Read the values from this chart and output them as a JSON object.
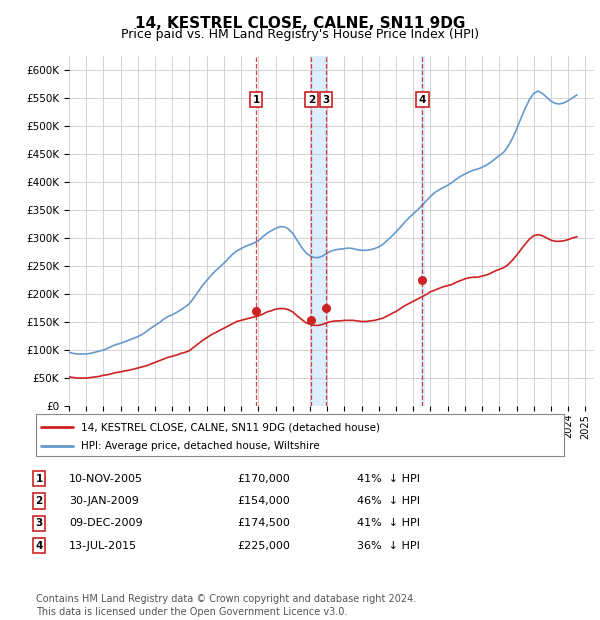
{
  "title": "14, KESTREL CLOSE, CALNE, SN11 9DG",
  "subtitle": "Price paid vs. HM Land Registry's House Price Index (HPI)",
  "title_fontsize": 11,
  "subtitle_fontsize": 9,
  "ylim": [
    0,
    625000
  ],
  "yticks": [
    0,
    50000,
    100000,
    150000,
    200000,
    250000,
    300000,
    350000,
    400000,
    450000,
    500000,
    550000,
    600000
  ],
  "ytick_labels": [
    "£0",
    "£50K",
    "£100K",
    "£150K",
    "£200K",
    "£250K",
    "£300K",
    "£350K",
    "£400K",
    "£450K",
    "£500K",
    "£550K",
    "£600K"
  ],
  "xlim_start": 1995.0,
  "xlim_end": 2025.5,
  "background_color": "#ffffff",
  "plot_bg_color": "#ffffff",
  "grid_color": "#cccccc",
  "hpi_line_color": "#6699cc",
  "property_line_color": "#cc2222",
  "sale_marker_color": "#cc2222",
  "sale_line_color": "#cc2222",
  "shade_color": "#ddeeff",
  "legend_label_property": "14, KESTREL CLOSE, CALNE, SN11 9DG (detached house)",
  "legend_label_hpi": "HPI: Average price, detached house, Wiltshire",
  "sales": [
    {
      "num": 1,
      "date_num": 2005.87,
      "price": 170000,
      "date_str": "10-NOV-2005",
      "pct": "41%",
      "direction": "↓"
    },
    {
      "num": 2,
      "date_num": 2009.08,
      "price": 154000,
      "date_str": "30-JAN-2009",
      "pct": "46%",
      "direction": "↓"
    },
    {
      "num": 3,
      "date_num": 2009.94,
      "price": 174500,
      "date_str": "09-DEC-2009",
      "pct": "41%",
      "direction": "↓"
    },
    {
      "num": 4,
      "date_num": 2015.53,
      "price": 225000,
      "date_str": "13-JUL-2015",
      "pct": "36%",
      "direction": "↓"
    }
  ],
  "hpi_data_x": [
    1995.0,
    1995.25,
    1995.5,
    1995.75,
    1996.0,
    1996.25,
    1996.5,
    1996.75,
    1997.0,
    1997.25,
    1997.5,
    1997.75,
    1998.0,
    1998.25,
    1998.5,
    1998.75,
    1999.0,
    1999.25,
    1999.5,
    1999.75,
    2000.0,
    2000.25,
    2000.5,
    2000.75,
    2001.0,
    2001.25,
    2001.5,
    2001.75,
    2002.0,
    2002.25,
    2002.5,
    2002.75,
    2003.0,
    2003.25,
    2003.5,
    2003.75,
    2004.0,
    2004.25,
    2004.5,
    2004.75,
    2005.0,
    2005.25,
    2005.5,
    2005.75,
    2006.0,
    2006.25,
    2006.5,
    2006.75,
    2007.0,
    2007.25,
    2007.5,
    2007.75,
    2008.0,
    2008.25,
    2008.5,
    2008.75,
    2009.0,
    2009.25,
    2009.5,
    2009.75,
    2010.0,
    2010.25,
    2010.5,
    2010.75,
    2011.0,
    2011.25,
    2011.5,
    2011.75,
    2012.0,
    2012.25,
    2012.5,
    2012.75,
    2013.0,
    2013.25,
    2013.5,
    2013.75,
    2014.0,
    2014.25,
    2014.5,
    2014.75,
    2015.0,
    2015.25,
    2015.5,
    2015.75,
    2016.0,
    2016.25,
    2016.5,
    2016.75,
    2017.0,
    2017.25,
    2017.5,
    2017.75,
    2018.0,
    2018.25,
    2018.5,
    2018.75,
    2019.0,
    2019.25,
    2019.5,
    2019.75,
    2020.0,
    2020.25,
    2020.5,
    2020.75,
    2021.0,
    2021.25,
    2021.5,
    2021.75,
    2022.0,
    2022.25,
    2022.5,
    2022.75,
    2023.0,
    2023.25,
    2023.5,
    2023.75,
    2024.0,
    2024.25,
    2024.5
  ],
  "hpi_data_y": [
    96000,
    94000,
    93000,
    93000,
    93000,
    94000,
    96000,
    98000,
    100000,
    103000,
    107000,
    110000,
    112000,
    115000,
    118000,
    121000,
    124000,
    128000,
    133000,
    139000,
    144000,
    149000,
    155000,
    160000,
    163000,
    167000,
    172000,
    177000,
    183000,
    193000,
    204000,
    215000,
    224000,
    233000,
    241000,
    248000,
    255000,
    263000,
    271000,
    277000,
    281000,
    285000,
    288000,
    291000,
    295000,
    302000,
    308000,
    313000,
    317000,
    320000,
    320000,
    316000,
    308000,
    296000,
    284000,
    274000,
    268000,
    265000,
    265000,
    268000,
    273000,
    277000,
    279000,
    280000,
    281000,
    282000,
    281000,
    279000,
    278000,
    278000,
    279000,
    281000,
    284000,
    289000,
    296000,
    303000,
    311000,
    319000,
    328000,
    336000,
    343000,
    350000,
    358000,
    366000,
    374000,
    381000,
    386000,
    390000,
    394000,
    399000,
    405000,
    410000,
    414000,
    418000,
    421000,
    423000,
    426000,
    430000,
    435000,
    441000,
    447000,
    453000,
    463000,
    477000,
    494000,
    513000,
    531000,
    547000,
    558000,
    562000,
    558000,
    551000,
    544000,
    540000,
    539000,
    541000,
    545000,
    550000,
    555000
  ],
  "prop_data_x": [
    1995.0,
    1995.25,
    1995.5,
    1995.75,
    1996.0,
    1996.25,
    1996.5,
    1996.75,
    1997.0,
    1997.25,
    1997.5,
    1997.75,
    1998.0,
    1998.25,
    1998.5,
    1998.75,
    1999.0,
    1999.25,
    1999.5,
    1999.75,
    2000.0,
    2000.25,
    2000.5,
    2000.75,
    2001.0,
    2001.25,
    2001.5,
    2001.75,
    2002.0,
    2002.25,
    2002.5,
    2002.75,
    2003.0,
    2003.25,
    2003.5,
    2003.75,
    2004.0,
    2004.25,
    2004.5,
    2004.75,
    2005.0,
    2005.25,
    2005.5,
    2005.75,
    2006.0,
    2006.25,
    2006.5,
    2006.75,
    2007.0,
    2007.25,
    2007.5,
    2007.75,
    2008.0,
    2008.25,
    2008.5,
    2008.75,
    2009.0,
    2009.25,
    2009.5,
    2009.75,
    2010.0,
    2010.25,
    2010.5,
    2010.75,
    2011.0,
    2011.25,
    2011.5,
    2011.75,
    2012.0,
    2012.25,
    2012.5,
    2012.75,
    2013.0,
    2013.25,
    2013.5,
    2013.75,
    2014.0,
    2014.25,
    2014.5,
    2014.75,
    2015.0,
    2015.25,
    2015.5,
    2015.75,
    2016.0,
    2016.25,
    2016.5,
    2016.75,
    2017.0,
    2017.25,
    2017.5,
    2017.75,
    2018.0,
    2018.25,
    2018.5,
    2018.75,
    2019.0,
    2019.25,
    2019.5,
    2019.75,
    2020.0,
    2020.25,
    2020.5,
    2020.75,
    2021.0,
    2021.25,
    2021.5,
    2021.75,
    2022.0,
    2022.25,
    2022.5,
    2022.75,
    2023.0,
    2023.25,
    2023.5,
    2023.75,
    2024.0,
    2024.25,
    2024.5
  ],
  "prop_data_y": [
    52000,
    51000,
    50000,
    50000,
    50000,
    51000,
    52000,
    53000,
    55000,
    56000,
    58000,
    60000,
    61000,
    63000,
    64000,
    66000,
    68000,
    70000,
    72000,
    75000,
    78000,
    81000,
    84000,
    87000,
    89000,
    91000,
    94000,
    96000,
    99000,
    105000,
    111000,
    117000,
    122000,
    127000,
    131000,
    135000,
    139000,
    143000,
    147000,
    151000,
    153000,
    155000,
    157000,
    159000,
    161000,
    164000,
    168000,
    170000,
    173000,
    174000,
    174000,
    172000,
    168000,
    161000,
    155000,
    149000,
    146000,
    144000,
    144000,
    146000,
    149000,
    151000,
    152000,
    152000,
    153000,
    153000,
    153000,
    152000,
    151000,
    151000,
    152000,
    153000,
    155000,
    157000,
    161000,
    165000,
    169000,
    174000,
    179000,
    183000,
    187000,
    191000,
    195000,
    199000,
    204000,
    207000,
    210000,
    213000,
    215000,
    217000,
    221000,
    224000,
    227000,
    229000,
    230000,
    230000,
    232000,
    234000,
    237000,
    241000,
    244000,
    247000,
    252000,
    260000,
    269000,
    279000,
    289000,
    298000,
    304000,
    306000,
    304000,
    300000,
    296000,
    294000,
    294000,
    295000,
    297000,
    300000,
    302000
  ],
  "footer": "Contains HM Land Registry data © Crown copyright and database right 2024.\nThis data is licensed under the Open Government Licence v3.0.",
  "footer_fontsize": 7.0
}
